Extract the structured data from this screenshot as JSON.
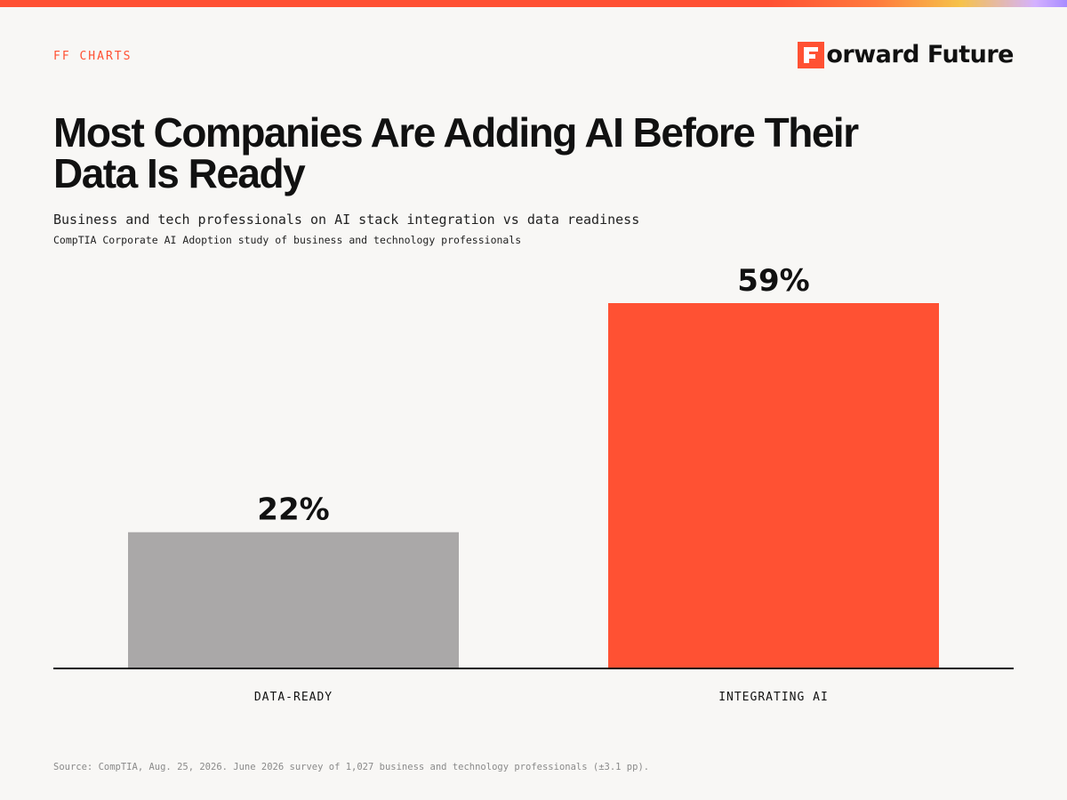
{
  "header": {
    "kicker": "FF CHARTS",
    "brand_name": "orward Future",
    "brand_icon": "forward-future-f-logo",
    "brand_color": "#ff5133"
  },
  "title": "Most Companies Are Adding AI Before Their Data Is Ready",
  "subtitle": "Business and tech professionals on AI stack integration vs data readiness",
  "source_line": "CompTIA Corporate AI Adoption study of business and technology professionals",
  "footer": "Source: CompTIA, Aug. 25, 2026. June 2026 survey of 1,027 business and technology professionals (±3.1  pp).",
  "chart_data": {
    "type": "bar",
    "categories": [
      "DATA-READY",
      "INTEGRATING AI"
    ],
    "values": [
      22,
      59
    ],
    "value_labels": [
      "22%",
      "59%"
    ],
    "colors": [
      "#aaa8a8",
      "#ff5133"
    ],
    "ylim": [
      0,
      59
    ],
    "grid": false,
    "legend": "none",
    "xlabel": "",
    "ylabel": ""
  }
}
